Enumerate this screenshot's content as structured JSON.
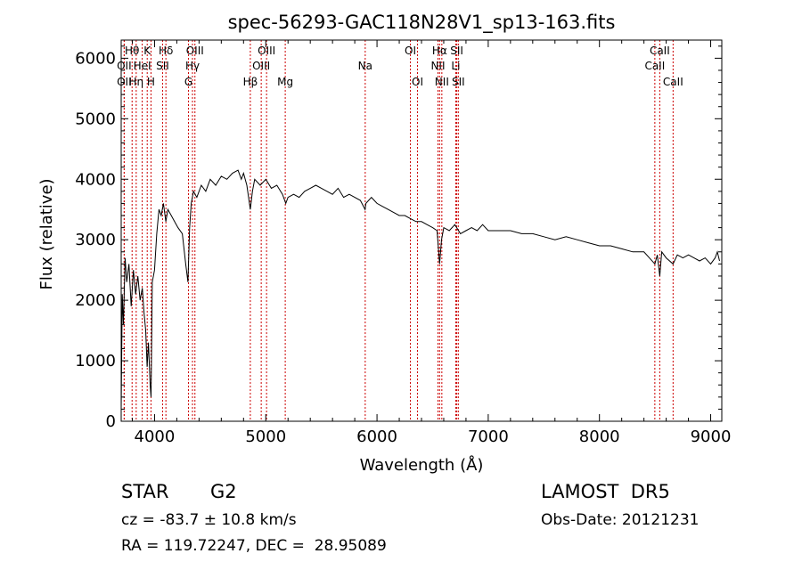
{
  "chart_data": {
    "type": "line",
    "title": "spec-56293-GAC118N28V1_sp13-163.fits",
    "xlabel": "Wavelength (Å)",
    "ylabel": "Flux (relative)",
    "xlim": [
      3700,
      9100
    ],
    "ylim": [
      0,
      6300
    ],
    "xticks": [
      "4000",
      "5000",
      "6000",
      "7000",
      "8000",
      "9000"
    ],
    "yticks": [
      "0",
      "1000",
      "2000",
      "3000",
      "4000",
      "5000",
      "6000"
    ],
    "grid": false,
    "line_color": "#000000",
    "marker_color": "#cc0000",
    "series": [
      {
        "x": [
          3700,
          3710,
          3720,
          3735,
          3750,
          3770,
          3790,
          3810,
          3830,
          3850,
          3870,
          3890,
          3905,
          3920,
          3933,
          3945,
          3960,
          3968,
          3980,
          4000,
          4020,
          4040,
          4060,
          4080,
          4101,
          4120,
          4150,
          4180,
          4210,
          4250,
          4280,
          4300,
          4315,
          4330,
          4350,
          4380,
          4420,
          4460,
          4500,
          4550,
          4600,
          4650,
          4700,
          4750,
          4780,
          4800,
          4830,
          4861,
          4880,
          4900,
          4950,
          5000,
          5050,
          5100,
          5150,
          5180,
          5200,
          5250,
          5300,
          5350,
          5400,
          5450,
          5500,
          5550,
          5600,
          5650,
          5700,
          5750,
          5800,
          5850,
          5893,
          5900,
          5950,
          6000,
          6050,
          6100,
          6150,
          6200,
          6250,
          6300,
          6350,
          6400,
          6450,
          6500,
          6540,
          6563,
          6580,
          6600,
          6650,
          6700,
          6750,
          6800,
          6850,
          6900,
          6950,
          7000,
          7100,
          7200,
          7300,
          7400,
          7500,
          7600,
          7700,
          7800,
          7900,
          8000,
          8100,
          8200,
          8300,
          8400,
          8498,
          8520,
          8542,
          8560,
          8600,
          8662,
          8700,
          8750,
          8800,
          8850,
          8900,
          8950,
          9000,
          9040,
          9060,
          9080
        ],
        "y": [
          200,
          2100,
          1600,
          2700,
          2300,
          2600,
          1900,
          2500,
          2100,
          2400,
          2000,
          2200,
          1800,
          1500,
          900,
          1300,
          600,
          400,
          2300,
          2500,
          3100,
          3500,
          3400,
          3600,
          3300,
          3500,
          3400,
          3300,
          3200,
          3100,
          2600,
          2300,
          3200,
          3600,
          3800,
          3700,
          3900,
          3800,
          4000,
          3900,
          4050,
          4000,
          4100,
          4150,
          4000,
          4100,
          3900,
          3500,
          3800,
          4000,
          3900,
          4000,
          3850,
          3900,
          3750,
          3600,
          3700,
          3750,
          3700,
          3800,
          3850,
          3900,
          3850,
          3800,
          3750,
          3850,
          3700,
          3750,
          3700,
          3650,
          3500,
          3600,
          3700,
          3600,
          3550,
          3500,
          3450,
          3400,
          3400,
          3350,
          3300,
          3300,
          3250,
          3200,
          3150,
          2600,
          3000,
          3200,
          3150,
          3250,
          3100,
          3150,
          3200,
          3150,
          3250,
          3150,
          3150,
          3150,
          3100,
          3100,
          3050,
          3000,
          3050,
          3000,
          2950,
          2900,
          2900,
          2850,
          2800,
          2800,
          2600,
          2750,
          2400,
          2800,
          2700,
          2600,
          2750,
          2700,
          2750,
          2700,
          2650,
          2700,
          2600,
          2700,
          2800,
          2650
        ]
      }
    ],
    "spectral_lines": [
      {
        "label": "Hθ",
        "x": 3798,
        "row": 1
      },
      {
        "label": "OII",
        "x": 3727,
        "row": 2
      },
      {
        "label": "OII",
        "x": 3727,
        "row": 3
      },
      {
        "label": "K",
        "x": 3934,
        "row": 1
      },
      {
        "label": "HeI",
        "x": 3889,
        "row": 2
      },
      {
        "label": "Hη",
        "x": 3835,
        "row": 3
      },
      {
        "label": "Hδ",
        "x": 4102,
        "row": 1
      },
      {
        "label": "SII",
        "x": 4072,
        "row": 2
      },
      {
        "label": "H",
        "x": 3968,
        "row": 3
      },
      {
        "label": "OIII",
        "x": 4363,
        "row": 1
      },
      {
        "label": "Hγ",
        "x": 4341,
        "row": 2
      },
      {
        "label": "G",
        "x": 4305,
        "row": 3
      },
      {
        "label": "OIII",
        "x": 5007,
        "row": 1
      },
      {
        "label": "OIII",
        "x": 4959,
        "row": 2
      },
      {
        "label": "Hβ",
        "x": 4861,
        "row": 3
      },
      {
        "label": "Mg",
        "x": 5175,
        "row": 3
      },
      {
        "label": "Na",
        "x": 5894,
        "row": 2
      },
      {
        "label": "OI",
        "x": 6300,
        "row": 1
      },
      {
        "label": "OI",
        "x": 6364,
        "row": 3
      },
      {
        "label": "Hα",
        "x": 6563,
        "row": 1
      },
      {
        "label": "NII",
        "x": 6548,
        "row": 2
      },
      {
        "label": "NII",
        "x": 6583,
        "row": 3
      },
      {
        "label": "SII",
        "x": 6717,
        "row": 1
      },
      {
        "label": "Li",
        "x": 6708,
        "row": 2
      },
      {
        "label": "SII",
        "x": 6731,
        "row": 3
      },
      {
        "label": "CaII",
        "x": 8542,
        "row": 1
      },
      {
        "label": "CaII",
        "x": 8498,
        "row": 2
      },
      {
        "label": "CaII",
        "x": 8662,
        "row": 3
      }
    ]
  },
  "info": {
    "object_type": "STAR",
    "subclass": "G2",
    "survey": "LAMOST  DR5",
    "redshift": "cz = -83.7 ± 10.8 km/s",
    "obs_date": "Obs-Date: 20121231",
    "coords": "RA = 119.72247, DEC =  28.95089"
  }
}
